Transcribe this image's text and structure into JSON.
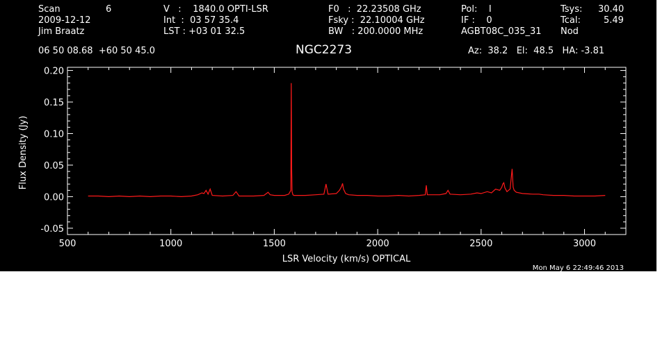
{
  "header": {
    "scan_label": "Scan",
    "scan_number": "6",
    "date": "2009-12-12",
    "observer": "Jim Braatz",
    "velocity": "V   :    1840.0 OPTI-LSR",
    "integration": "Int  :  03 57 35.4",
    "lst": "LST : +03 01 32.5",
    "rest_freq": "F0   :  22.23508 GHz",
    "sky_freq": "Fsky :  22.10004 GHz",
    "bandwidth": "BW   : 200.0000 MHz",
    "polarization": "Pol:    I",
    "if_number": "IF :    0",
    "project": "AGBT08C_035_31",
    "tsys_label": "Tsys:",
    "tsys_value": "30.40",
    "tcal_label": "Tcal:",
    "tcal_value": "5.49",
    "mode": "Nod",
    "coordinates": "06 50 08.68  +60 50 45.0",
    "source": "NGC2273",
    "azel": "Az:  38.2   El:  48.5   HA: -3.81",
    "timestamp": "Mon May  6 22:49:46 2013"
  },
  "colors": {
    "background": "#000000",
    "axes": "#ffffff",
    "spectrum": "#ff1a1a"
  },
  "chart_data": {
    "type": "line",
    "xlabel": "LSR Velocity (km/s) OPTICAL",
    "ylabel": "Flux Density (Jy)",
    "xlim": [
      500,
      3200
    ],
    "ylim": [
      -0.06,
      0.205
    ],
    "xticks": [
      500,
      1000,
      1500,
      2000,
      2500,
      3000
    ],
    "yticks": [
      -0.05,
      0.0,
      0.05,
      0.1,
      0.15,
      0.2
    ],
    "ytick_labels": [
      "-0.05",
      "0.00",
      "0.05",
      "0.10",
      "0.15",
      "0.20"
    ],
    "series": [
      {
        "color": "#ff1a1a",
        "x": [
          600,
          650,
          700,
          750,
          800,
          850,
          900,
          950,
          1000,
          1050,
          1100,
          1130,
          1150,
          1160,
          1170,
          1180,
          1190,
          1200,
          1250,
          1300,
          1315,
          1330,
          1400,
          1450,
          1470,
          1480,
          1500,
          1550,
          1570,
          1580,
          1582,
          1584,
          1586,
          1590,
          1595,
          1650,
          1700,
          1740,
          1750,
          1760,
          1800,
          1815,
          1825,
          1830,
          1835,
          1845,
          1860,
          1900,
          1950,
          2000,
          2050,
          2100,
          2150,
          2200,
          2230,
          2235,
          2240,
          2300,
          2330,
          2340,
          2350,
          2400,
          2450,
          2480,
          2500,
          2530,
          2550,
          2570,
          2590,
          2600,
          2605,
          2610,
          2615,
          2625,
          2640,
          2650,
          2655,
          2660,
          2670,
          2700,
          2750,
          2780,
          2800,
          2850,
          2900,
          2950,
          3000,
          3050,
          3100
        ],
        "y": [
          0.001,
          0.001,
          0.0,
          0.001,
          0.0,
          0.001,
          0.0,
          0.001,
          0.001,
          0.0,
          0.001,
          0.003,
          0.006,
          0.005,
          0.01,
          0.004,
          0.012,
          0.002,
          0.001,
          0.002,
          0.008,
          0.001,
          0.001,
          0.002,
          0.007,
          0.003,
          0.002,
          0.002,
          0.004,
          0.01,
          0.18,
          0.045,
          0.008,
          0.003,
          0.002,
          0.002,
          0.003,
          0.004,
          0.02,
          0.004,
          0.005,
          0.01,
          0.016,
          0.021,
          0.012,
          0.005,
          0.003,
          0.002,
          0.002,
          0.001,
          0.001,
          0.002,
          0.001,
          0.002,
          0.003,
          0.018,
          0.003,
          0.003,
          0.005,
          0.01,
          0.004,
          0.003,
          0.004,
          0.006,
          0.005,
          0.008,
          0.006,
          0.012,
          0.01,
          0.015,
          0.02,
          0.022,
          0.014,
          0.008,
          0.012,
          0.044,
          0.015,
          0.01,
          0.007,
          0.005,
          0.004,
          0.004,
          0.003,
          0.002,
          0.002,
          0.001,
          0.001,
          0.001,
          0.002
        ]
      }
    ]
  }
}
